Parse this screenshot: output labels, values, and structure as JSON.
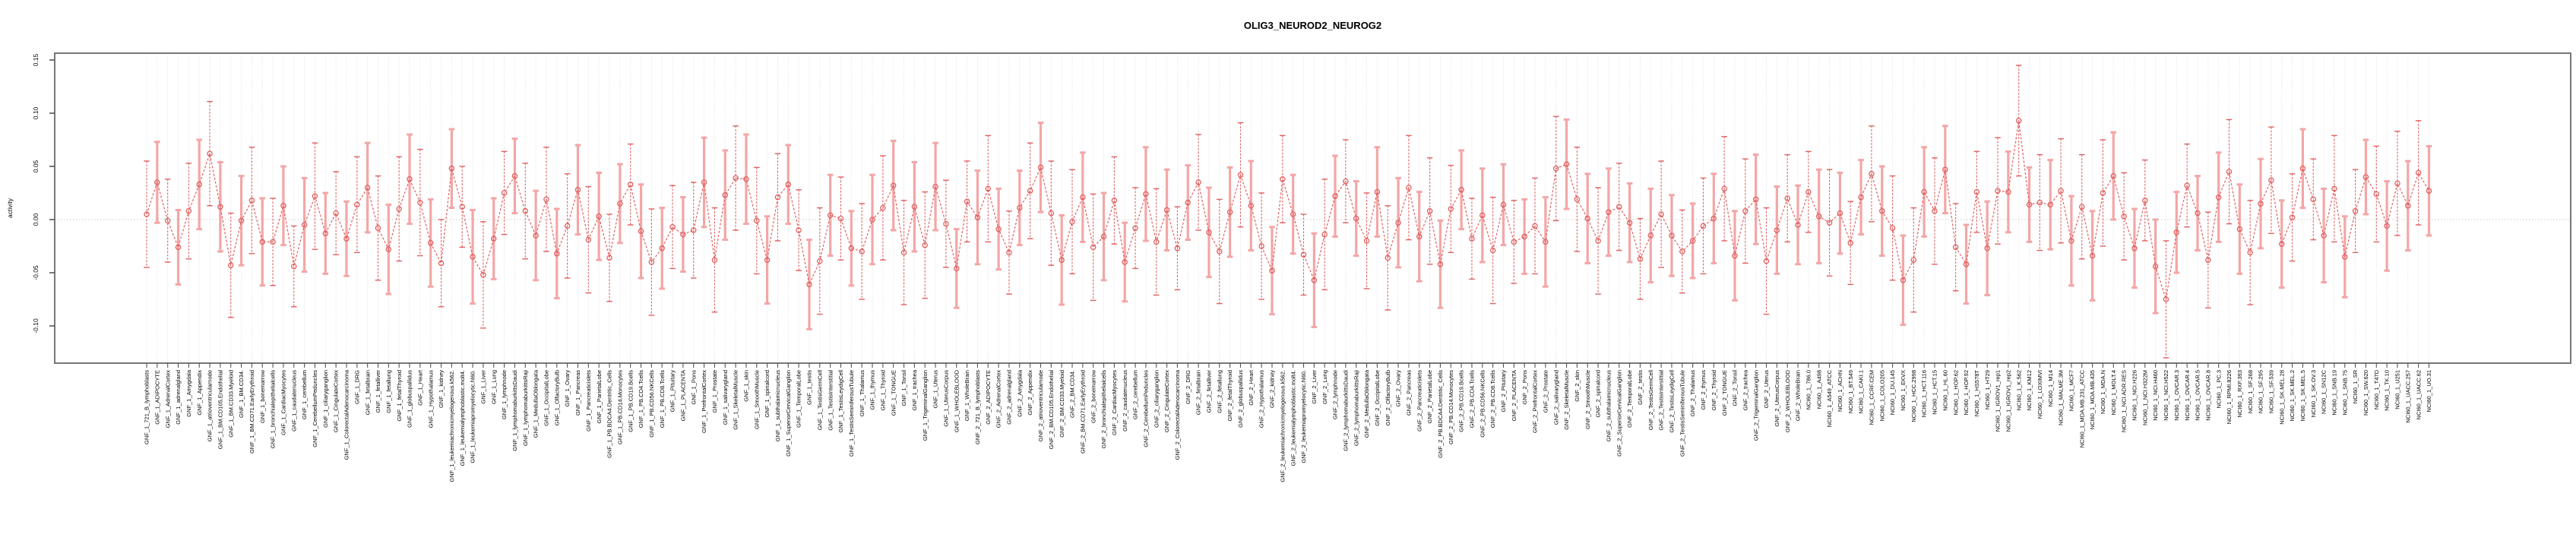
{
  "chart_data": {
    "type": "line",
    "subtype": "points-with-error-bars",
    "title": "OLIG3_NEUROD2_NEUROG2",
    "xlabel": "",
    "ylabel": "activity",
    "ylim": [
      -0.13,
      0.155
    ],
    "yticks": [
      0.15,
      0.1,
      0.05,
      0.0,
      -0.05,
      -0.1
    ],
    "ytick_labels": [
      "0.15",
      "0.10",
      "0.05",
      "0.00",
      "-0.05",
      "-0.10"
    ],
    "grid": "vertical-dotted-per-category",
    "zero_line": "dotted",
    "legend_position": "none",
    "point_color": "#e06161",
    "bar_color_light": "#f3a6a6",
    "bar_color_dark": "#e06161",
    "axis_color": "#777777",
    "grid_color": "#d9d9d9",
    "categories": [
      "GNF_1_721_B_lymphoblasts",
      "GNF_1_ADIPOCYTE",
      "GNF_1_AdrenalCortex",
      "GNF_1_adrenalgland",
      "GNF_1_Amygdala",
      "GNF_1_Appendix",
      "GNF_1_atrioventricularnode",
      "GNF_1_BM.CD105.Endothelial",
      "GNF_1_BM.CD33.Myeloid",
      "GNF_1_BM.CD34.",
      "GNF_1_BM.CD71.EarlyErythroid",
      "GNF_1_bonemarrow",
      "GNF_1_bronchialepithelialcells",
      "GNF_1_CardiacMyocytes",
      "GNF_1_caudatenucleus",
      "GNF_1_cerebellum",
      "GNF_1_CerebellumPeduncles",
      "GNF_1_ciliaryganglion",
      "GNF_1_CingulateCortex",
      "GNF_1_ColorectalAdenocarcinoma",
      "GNF_1_DRG",
      "GNF_1_fetalbrain",
      "GNF_1_fetalliver",
      "GNF_1_fetallung",
      "GNF_1_fetalThyroid",
      "GNF_1_globuspallidus",
      "GNF_1_Heart",
      "GNF_1_Hypothalamus",
      "GNF_1_kidney",
      "GNF_1_leukemiachronicmyelogenous.k562.",
      "GNF_1_leukemialymphoblastic.molt4.",
      "GNF_1_leukemiapromyelocytic.hl60.",
      "GNF_1_Liver",
      "GNF_1_Lung",
      "GNF_1_lymphnode",
      "GNF_1_lymphomaburkittsDaudi",
      "GNF_1_lymphomaburkittsRaji",
      "GNF_1_MedullaOblongata",
      "GNF_1_OccipitalLobe",
      "GNF_1_OlfactoryBulb",
      "GNF_1_Ovary",
      "GNF_1_Pancreas",
      "GNF_1_Pancreaticislets",
      "GNF_1_ParietalLobe",
      "GNF_1_PB.BDCA4.Dentritic_Cells",
      "GNF_1_PB.CD14.Monocytes",
      "GNF_1_PB.CD19.Bcells",
      "GNF_1_PB.CD4.Tcells",
      "GNF_1_PB.CD56.NKCells",
      "GNF_1_PB.CD8.Tcells",
      "GNF_1_Pituitary",
      "GNF_1_PLACENTA",
      "GNF_1_Pons",
      "GNF_1_PrefrontalCortex",
      "GNF_1_Prostate",
      "GNF_1_salivarygland",
      "GNF_1_SkeletalMuscle",
      "GNF_1_skin",
      "GNF_1_SmoothMuscle",
      "GNF_1_spinalcord",
      "GNF_1_subthalamicnucleus",
      "GNF_1_SuperiorCervicalGanglion",
      "GNF_1_TemporalLobe",
      "GNF_1_testis",
      "GNF_1_TestisGermCell",
      "GNF_1_TestisInterstitial",
      "GNF_1_TestisLeydigCell",
      "GNF_1_TestisSeminiferousTubule",
      "GNF_1_Thalamus",
      "GNF_1_thymus",
      "GNF_1_Thyroid",
      "GNF_1_TONGUE",
      "GNF_1_Tonsil",
      "GNF_1_trachea",
      "GNF_1_TrigeminalGanglion",
      "GNF_1_Uterus",
      "GNF_1_UterusCorpus",
      "GNF_1_WHOLEBLOOD",
      "GNF_1_WholeBrain",
      "GNF_2_721_B_lymphoblasts",
      "GNF_2_ADIPOCYTE",
      "GNF_2_AdrenalCortex",
      "GNF_2_adrenalgland",
      "GNF_2_Amygdala",
      "GNF_2_Appendix",
      "GNF_2_atrioventricularnode",
      "GNF_2_BM.CD105.Endothelial",
      "GNF_2_BM.CD33.Myeloid",
      "GNF_2_BM.CD34.",
      "GNF_2_BM.CD71.EarlyErythroid",
      "GNF_2_bonemarrow",
      "GNF_2_bronchialepithelialcells",
      "GNF_2_CardiacMyocytes",
      "GNF_2_caudatenucleus",
      "GNF_2_cerebellum",
      "GNF_2_CerebellumPeduncles",
      "GNF_2_ciliaryganglion",
      "GNF_2_CingulateCortex",
      "GNF_2_ColorectalAdenocarcinoma",
      "GNF_2_DRG",
      "GNF_2_fetalbrain",
      "GNF_2_fetalliver",
      "GNF_2_fetallung",
      "GNF_2_fetalThyroid",
      "GNF_2_globuspallidus",
      "GNF_2_Heart",
      "GNF_2_Hypothalamus",
      "GNF_2_kidney",
      "GNF_2_leukemiachronicmyelogenous.k562.",
      "GNF_2_leukemialymphoblastic.molt4.",
      "GNF_2_leukemiapromyelocytic.hl60.",
      "GNF_2_Liver",
      "GNF_2_Lung",
      "GNF_2_lymphnode",
      "GNF_2_lymphomaburkittsDaudi",
      "GNF_2_lymphomaburkittsRaji",
      "GNF_2_MedullaOblongata",
      "GNF_2_OccipitalLobe",
      "GNF_2_OlfactoryBulb",
      "GNF_2_Ovary",
      "GNF_2_Pancreas",
      "GNF_2_Pancreaticislets",
      "GNF_2_ParietalLobe",
      "GNF_2_PB.BDCA4.Dentritic_Cells",
      "GNF_2_PB.CD14.Monocytes",
      "GNF_2_PB.CD19.Bcells",
      "GNF_2_PB.CD4.Tcells",
      "GNF_2_PB.CD56.NKCells",
      "GNF_2_PB.CD8.Tcells",
      "GNF_2_Pituitary",
      "GNF_2_PLACENTA",
      "GNF_2_Pons",
      "GNF_2_PrefrontalCortex",
      "GNF_2_Prostate",
      "GNF_2_salivarygland",
      "GNF_2_SkeletalMuscle",
      "GNF_2_skin",
      "GNF_2_SmoothMuscle",
      "GNF_2_spinalcord",
      "GNF_2_subthalamicnucleus",
      "GNF_2_SuperiorCervicalGanglion",
      "GNF_2_TemporalLobe",
      "GNF_2_testis",
      "GNF_2_TestisGermCell",
      "GNF_2_TestisInterstitial",
      "GNF_2_TestisLeydigCell",
      "GNF_2_TestisSeminiferousTubule",
      "GNF_2_Thalamus",
      "GNF_2_thymus",
      "GNF_2_Thyroid",
      "GNF_2_TONGUE",
      "GNF_2_Tonsil",
      "GNF_2_trachea",
      "GNF_2_TrigeminalGanglion",
      "GNF_2_Uterus",
      "GNF_2_UterusCorpus",
      "GNF_2_WHOLEBLOOD",
      "GNF_2_WholeBrain",
      "NCI60_1_786.0",
      "NCI60_1_A498",
      "NCI60_1_A549_ATCC",
      "NCI60_1_ACHN",
      "NCI60_1_BT.549",
      "NCI60_1_CAKI.1",
      "NCI60_1_CCRF.CEM",
      "NCI60_1_COLO205",
      "NCI60_1_DU.145",
      "NCI60_1_EKVX",
      "NCI60_1_HCC.2998",
      "NCI60_1_HCT.116",
      "NCI60_1_HCT.15",
      "NCI60_1_HL.60",
      "NCI60_1_HOP.62",
      "NCI60_1_HOP.92",
      "NCI60_1_HS578T",
      "NCI60_1_HT29",
      "NCI60_1_IGROV1_rep1",
      "NCI60_1_IGROV1_rep2",
      "NCI60_1_K.562",
      "NCI60_1_KM12",
      "NCI60_1_LOXIMVI",
      "NCI60_1_M14",
      "NCI60_1_MALME.3M",
      "NCI60_1_MCF7",
      "NCI60_1_MDA.MB.231_ATCC",
      "NCI60_1_MDA.MB.435",
      "NCI60_1_MDA.N",
      "NCI60_1_MOLT.4",
      "NCI60_1_NCI.ADR.RES",
      "NCI60_1_NCI.H226",
      "NCI60_1_NCI.H322M",
      "NCI60_1_NCI.H460",
      "NCI60_1_NCI.H522",
      "NCI60_1_OVCAR.3",
      "NCI60_1_OVCAR.4",
      "NCI60_1_OVCAR.5",
      "NCI60_1_OVCAR.8",
      "NCI60_1_PC.3",
      "NCI60_1_RPMI.8226",
      "NCI60_1_RXF.393",
      "NCI60_1_SF.268",
      "NCI60_1_SF.295",
      "NCI60_1_SF.539",
      "NCI60_1_SK.MEL.28",
      "NCI60_1_SK.MEL.2",
      "NCI60_1_SK.MEL.5",
      "NCI60_1_SK.OV.3",
      "NCI60_1_SN12C",
      "NCI60_1_SNB.19",
      "NCI60_1_SNB.75",
      "NCI60_1_SR",
      "NCI60_1_SW.620",
      "NCI60_1_T47D",
      "NCI60_1_TK.10",
      "NCI60_1_U251",
      "NCI60_1_UACC.257",
      "NCI60_1_UACC.62",
      "NCI60_1_UO.31"
    ],
    "values": [
      0.005,
      0.035,
      -0.001,
      -0.026,
      0.008,
      0.033,
      0.062,
      0.012,
      -0.043,
      -0.001,
      0.018,
      -0.021,
      -0.021,
      0.013,
      -0.044,
      -0.005,
      0.022,
      -0.013,
      0.006,
      -0.018,
      0.014,
      0.03,
      -0.008,
      -0.028,
      0.01,
      0.038,
      0.016,
      -0.022,
      -0.041,
      0.048,
      0.012,
      -0.035,
      -0.052,
      -0.018,
      0.025,
      0.041,
      0.008,
      -0.015,
      0.019,
      -0.032,
      -0.006,
      0.028,
      -0.019,
      0.003,
      -0.036,
      0.015,
      0.033,
      -0.011,
      -0.04,
      -0.027,
      -0.007,
      -0.014,
      -0.01,
      0.035,
      -0.038,
      0.023,
      0.039,
      0.038,
      -0.001,
      -0.038,
      0.021,
      0.033,
      -0.01,
      -0.061,
      -0.039,
      0.004,
      0.001,
      -0.027,
      -0.03,
      0.0,
      0.011,
      0.032,
      -0.031,
      0.012,
      -0.024,
      0.031,
      -0.004,
      -0.046,
      0.017,
      0.002,
      0.029,
      -0.009,
      -0.031,
      0.011,
      0.027,
      0.049,
      0.006,
      -0.038,
      -0.002,
      0.021,
      -0.026,
      -0.016,
      0.018,
      -0.04,
      -0.008,
      0.024,
      -0.021,
      0.009,
      -0.027,
      0.016,
      0.035,
      -0.012,
      -0.03,
      0.007,
      0.042,
      0.013,
      -0.025,
      -0.048,
      0.038,
      0.005,
      -0.033,
      -0.057,
      -0.014,
      0.022,
      0.036,
      0.001,
      -0.02,
      0.026,
      -0.036,
      -0.003,
      0.03,
      -0.016,
      0.008,
      -0.042,
      0.01,
      0.028,
      -0.018,
      0.004,
      -0.029,
      0.014,
      -0.021,
      -0.016,
      -0.006,
      -0.021,
      0.048,
      0.052,
      0.019,
      0.001,
      -0.02,
      0.007,
      0.012,
      -0.003,
      -0.037,
      -0.015,
      0.005,
      -0.015,
      -0.03,
      -0.02,
      -0.006,
      0.001,
      0.029,
      -0.034,
      0.008,
      0.019,
      -0.039,
      -0.01,
      0.02,
      -0.005,
      0.026,
      0.003,
      -0.003,
      0.006,
      -0.022,
      0.021,
      0.043,
      0.008,
      -0.008,
      -0.057,
      -0.038,
      0.026,
      0.008,
      0.047,
      -0.026,
      -0.042,
      0.026,
      -0.027,
      0.027,
      0.026,
      0.093,
      0.014,
      0.016,
      0.014,
      0.027,
      -0.02,
      0.012,
      -0.034,
      0.025,
      0.041,
      0.003,
      -0.027,
      0.018,
      -0.044,
      -0.075,
      -0.012,
      0.032,
      0.006,
      -0.038,
      0.021,
      0.045,
      -0.009,
      -0.031,
      0.015,
      0.037,
      -0.023,
      0.002,
      0.048,
      0.019,
      -0.015,
      0.029,
      -0.035,
      0.008,
      0.04,
      0.024,
      -0.006,
      0.034,
      0.013,
      0.044,
      0.027
    ],
    "errors": [
      0.05,
      0.038,
      0.039,
      0.035,
      0.045,
      0.042,
      0.049,
      0.042,
      0.049,
      0.042,
      0.05,
      0.041,
      0.041,
      0.037,
      0.038,
      0.044,
      0.05,
      0.038,
      0.039,
      0.035,
      0.045,
      0.042,
      0.049,
      0.042,
      0.049,
      0.042,
      0.05,
      0.041,
      0.041,
      0.037,
      0.038,
      0.044,
      0.05,
      0.038,
      0.039,
      0.035,
      0.045,
      0.042,
      0.049,
      0.042,
      0.049,
      0.042,
      0.05,
      0.041,
      0.041,
      0.037,
      0.038,
      0.044,
      0.05,
      0.038,
      0.039,
      0.035,
      0.045,
      0.042,
      0.049,
      0.042,
      0.049,
      0.042,
      0.05,
      0.041,
      0.041,
      0.037,
      0.038,
      0.042,
      0.05,
      0.038,
      0.039,
      0.035,
      0.045,
      0.042,
      0.049,
      0.042,
      0.049,
      0.042,
      0.05,
      0.041,
      0.041,
      0.037,
      0.038,
      0.044,
      0.05,
      0.038,
      0.039,
      0.035,
      0.045,
      0.042,
      0.049,
      0.042,
      0.049,
      0.042,
      0.05,
      0.041,
      0.041,
      0.037,
      0.038,
      0.044,
      0.05,
      0.038,
      0.039,
      0.035,
      0.045,
      0.042,
      0.049,
      0.042,
      0.049,
      0.042,
      0.05,
      0.041,
      0.041,
      0.037,
      0.038,
      0.044,
      0.052,
      0.038,
      0.039,
      0.035,
      0.045,
      0.042,
      0.049,
      0.042,
      0.049,
      0.042,
      0.05,
      0.041,
      0.041,
      0.037,
      0.038,
      0.044,
      0.05,
      0.038,
      0.039,
      0.035,
      0.045,
      0.042,
      0.049,
      0.042,
      0.049,
      0.042,
      0.05,
      0.041,
      0.041,
      0.037,
      0.038,
      0.044,
      0.05,
      0.038,
      0.039,
      0.035,
      0.045,
      0.042,
      0.049,
      0.042,
      0.049,
      0.042,
      0.05,
      0.041,
      0.041,
      0.037,
      0.038,
      0.044,
      0.05,
      0.038,
      0.039,
      0.035,
      0.045,
      0.042,
      0.049,
      0.042,
      0.049,
      0.042,
      0.05,
      0.041,
      0.041,
      0.037,
      0.038,
      0.044,
      0.05,
      0.038,
      0.052,
      0.035,
      0.045,
      0.042,
      0.049,
      0.042,
      0.049,
      0.042,
      0.05,
      0.041,
      0.041,
      0.037,
      0.038,
      0.044,
      0.055,
      0.038,
      0.039,
      0.035,
      0.045,
      0.042,
      0.049,
      0.042,
      0.049,
      0.042,
      0.05,
      0.041,
      0.041,
      0.037,
      0.038,
      0.044,
      0.05,
      0.038,
      0.039,
      0.035,
      0.045,
      0.042,
      0.049,
      0.042,
      0.049,
      0.042
    ]
  }
}
